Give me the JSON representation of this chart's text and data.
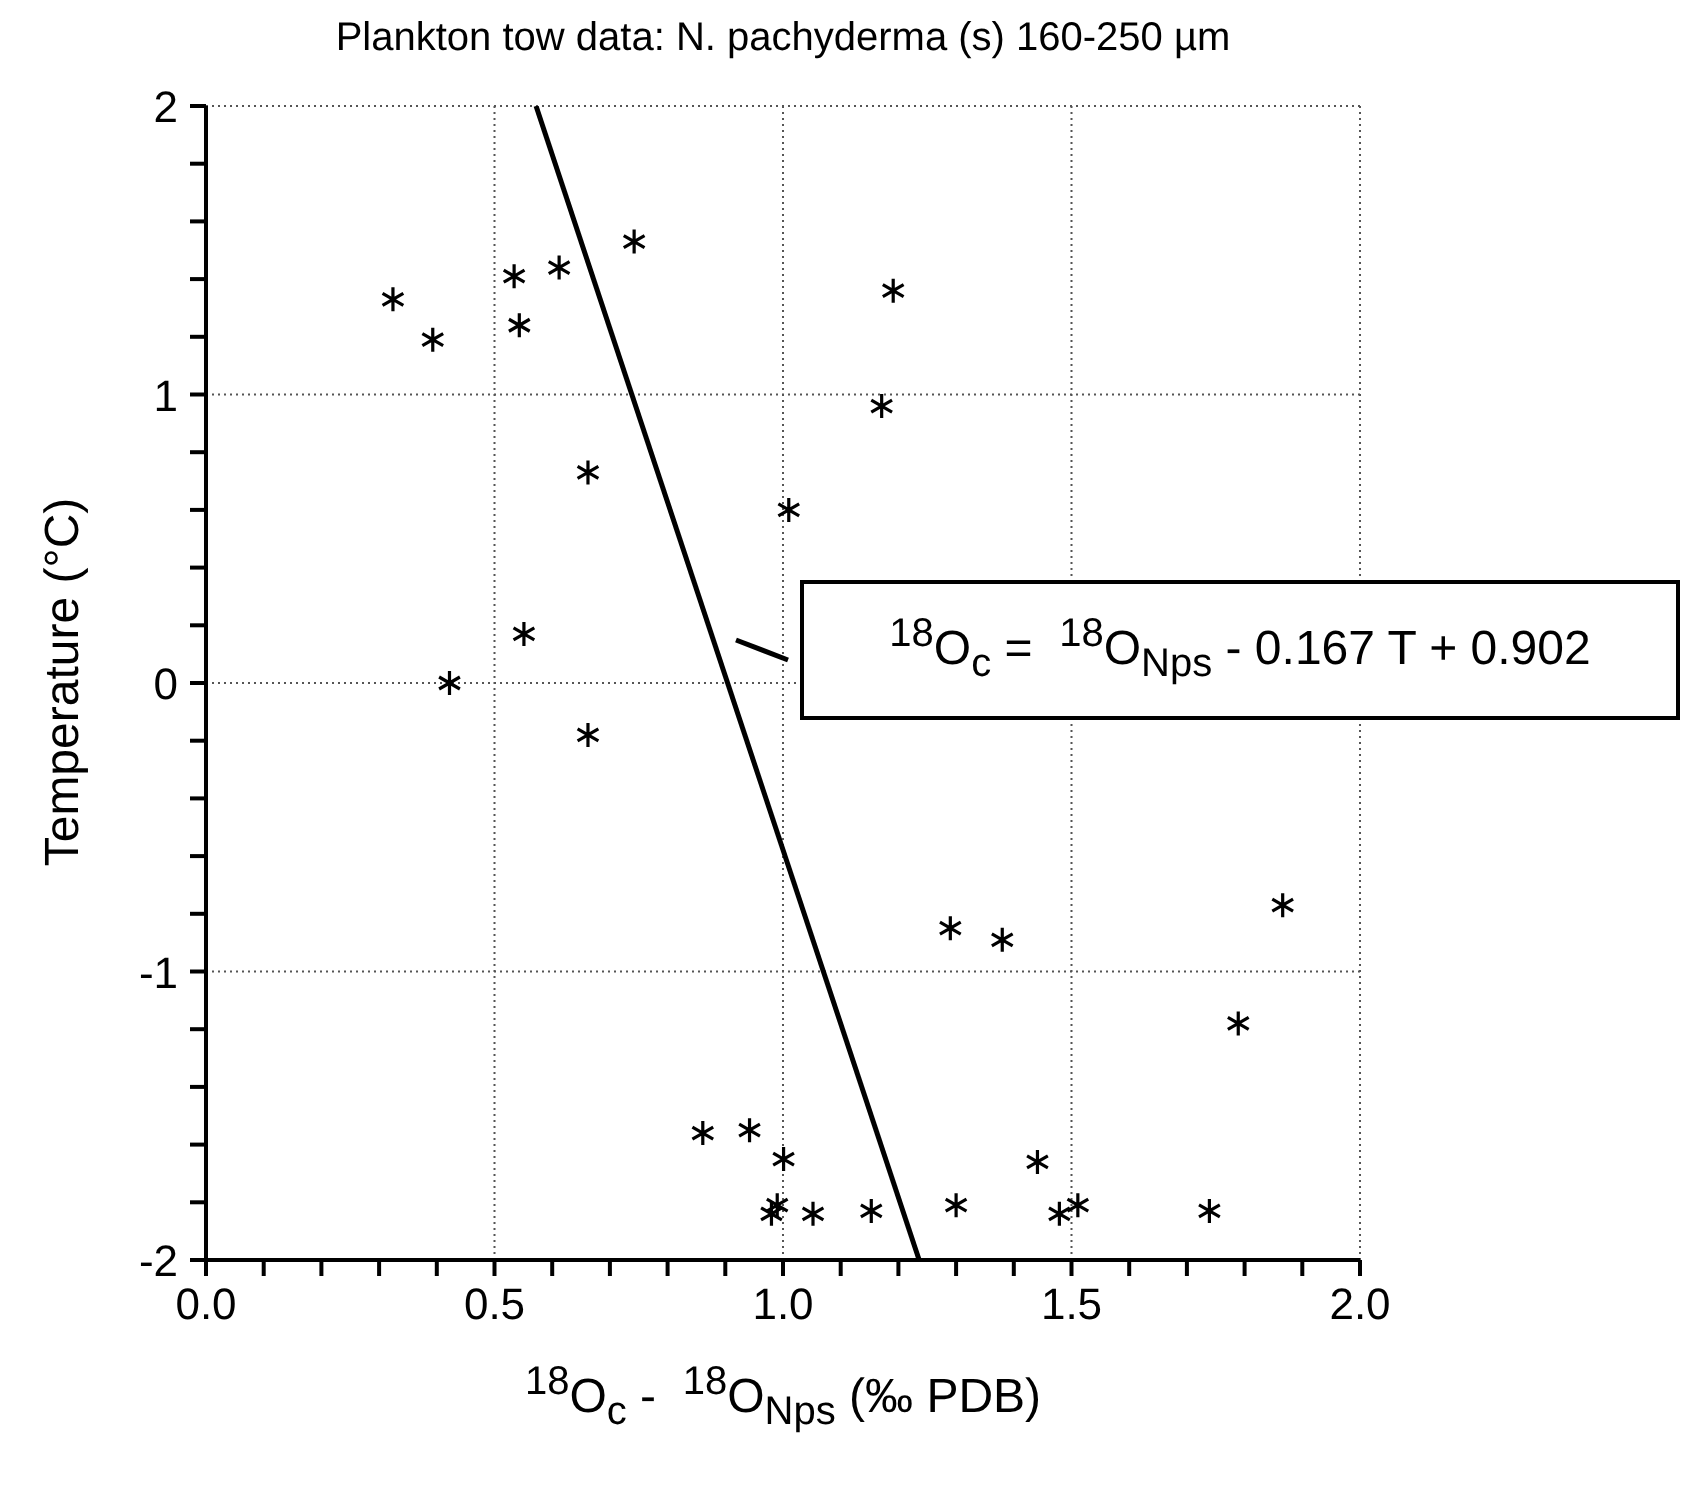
{
  "chart_data": {
    "type": "scatter",
    "title": "Plankton tow data: N. pachyderma (s) 160-250 µm",
    "xlabel": "$^{18}$O$_{c}$ -  $^{18}$O$_{Nps}$ (‰ PDB)",
    "ylabel": "Temperature (°C)",
    "annotations": [
      "$^{18}$O$_{c}$ =  $^{18}$O$_{Nps}$ - 0.167 T + 0.902"
    ],
    "series": [
      {
        "color": "#000000",
        "marker": "cross",
        "x": [
          0.324,
          0.393,
          0.534,
          0.543,
          0.612,
          0.742,
          1.191,
          1.171,
          0.662,
          1.01,
          0.551,
          0.422,
          0.662,
          1.29,
          1.38,
          1.866,
          1.789,
          0.861,
          0.942,
          1.001,
          0.99,
          0.98,
          1.052,
          1.153,
          1.3,
          1.441,
          1.479,
          1.511,
          1.739
        ],
        "values": [
          1.33,
          1.19,
          1.41,
          1.24,
          1.44,
          1.53,
          1.36,
          0.96,
          0.73,
          0.6,
          0.17,
          0.0,
          -0.18,
          -0.85,
          -0.89,
          -0.77,
          -1.18,
          -1.56,
          -1.55,
          -1.65,
          -1.81,
          -1.84,
          -1.84,
          -1.83,
          -1.81,
          -1.66,
          -1.84,
          -1.81,
          -1.83
        ]
      },
      {
        "type": "line",
        "color": "#000000",
        "marker": "none",
        "line_style": "solid",
        "x": [
          0.572,
          1.236
        ],
        "values": [
          2,
          -2
        ]
      }
    ],
    "xlim": [
      0,
      2
    ],
    "ylim": [
      -2,
      2
    ],
    "xticks": [
      {
        "value": 0,
        "label": "0.0"
      },
      {
        "value": 0.1,
        "label": null
      },
      {
        "value": 0.2,
        "label": null
      },
      {
        "value": 0.3,
        "label": null
      },
      {
        "value": 0.4,
        "label": null
      },
      {
        "value": 0.5,
        "label": "0.5"
      },
      {
        "value": 0.6,
        "label": null
      },
      {
        "value": 0.7,
        "label": null
      },
      {
        "value": 0.8,
        "label": null
      },
      {
        "value": 0.9,
        "label": null
      },
      {
        "value": 1,
        "label": "1.0"
      },
      {
        "value": 1.1,
        "label": null
      },
      {
        "value": 1.2,
        "label": null
      },
      {
        "value": 1.3,
        "label": null
      },
      {
        "value": 1.4,
        "label": null
      },
      {
        "value": 1.5,
        "label": "1.5"
      },
      {
        "value": 1.6,
        "label": null
      },
      {
        "value": 1.7,
        "label": null
      },
      {
        "value": 1.8,
        "label": null
      },
      {
        "value": 1.9,
        "label": null
      },
      {
        "value": 2,
        "label": "2.0"
      }
    ],
    "yticks": [
      -2,
      {
        "value": -1.8,
        "label": null
      },
      {
        "value": -1.6,
        "label": null
      },
      {
        "value": -1.4,
        "label": null
      },
      {
        "value": -1.2,
        "label": null
      },
      -1,
      {
        "value": -0.8,
        "label": null
      },
      {
        "value": -0.6,
        "label": null
      },
      {
        "value": -0.4,
        "label": null
      },
      {
        "value": -0.2,
        "label": null
      },
      0,
      {
        "value": 0.2,
        "label": null
      },
      {
        "value": 0.4,
        "label": null
      },
      {
        "value": 0.6,
        "label": null
      },
      {
        "value": 0.8,
        "label": null
      },
      1,
      {
        "value": 1.2,
        "label": null
      },
      {
        "value": 1.4,
        "label": null
      },
      {
        "value": 1.6,
        "label": null
      },
      {
        "value": 1.8,
        "label": null
      },
      2
    ],
    "grid": true
  }
}
